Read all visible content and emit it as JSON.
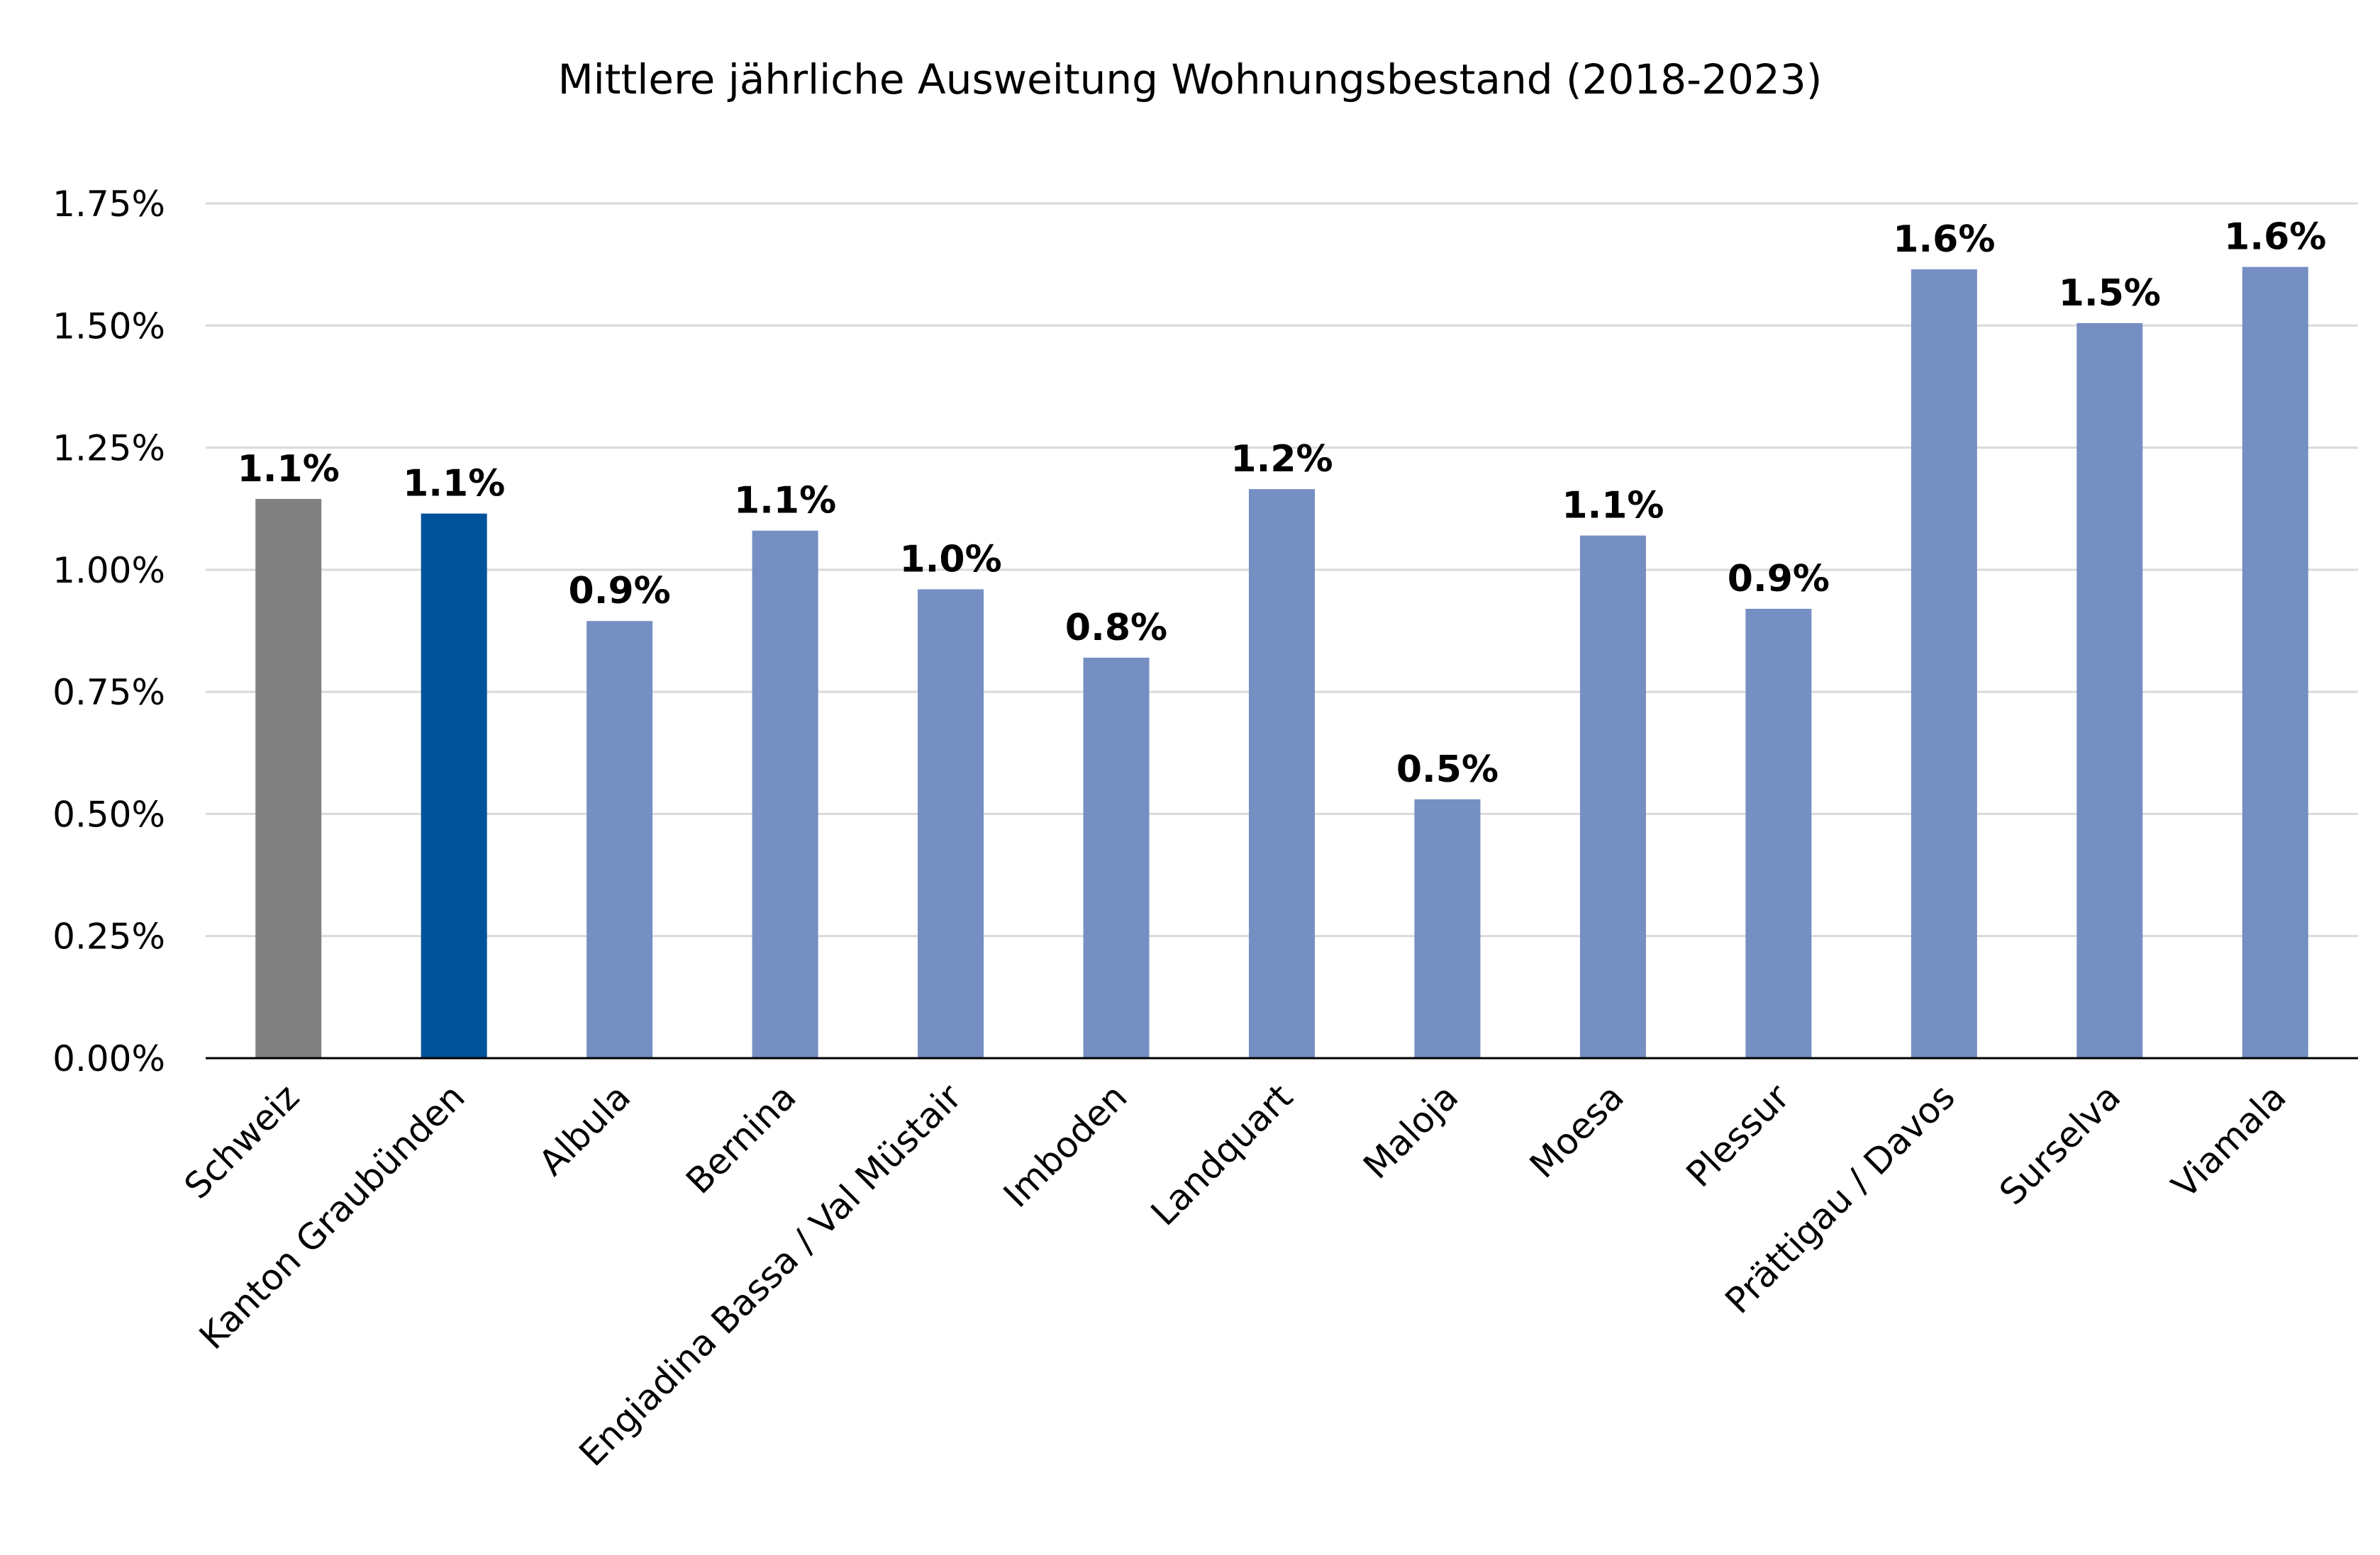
{
  "chart_data": {
    "type": "bar",
    "title": "Mittlere jährliche Ausweitung Wohnungsbestand (2018-2023)",
    "xlabel": "",
    "ylabel": "",
    "ylim": [
      0,
      1.75
    ],
    "yticks": [
      0,
      0.25,
      0.5,
      0.75,
      1.0,
      1.25,
      1.5,
      1.75
    ],
    "ytick_labels": [
      "0.00%",
      "0.25%",
      "0.50%",
      "0.75%",
      "1.00%",
      "1.25%",
      "1.50%",
      "1.75%"
    ],
    "grid": true,
    "legend": false,
    "categories": [
      "Schweiz",
      "Kanton Graubünden",
      "Albula",
      "Bernina",
      "Engiadina Bassa / Val Müstair",
      "Imboden",
      "Landquart",
      "Maloja",
      "Moesa",
      "Plessur",
      "Prättigau / Davos",
      "Surselva",
      "Viamala"
    ],
    "values": [
      1.145,
      1.115,
      0.895,
      1.08,
      0.96,
      0.82,
      1.165,
      0.53,
      1.07,
      0.92,
      1.615,
      1.505,
      1.62
    ],
    "data_labels": [
      "1.1%",
      "1.1%",
      "0.9%",
      "1.1%",
      "1.0%",
      "0.8%",
      "1.2%",
      "0.5%",
      "1.1%",
      "0.9%",
      "1.6%",
      "1.5%",
      "1.6%"
    ],
    "bar_colors": [
      "#808080",
      "#00529b",
      "#758fc3",
      "#758fc3",
      "#758fc3",
      "#758fc3",
      "#758fc3",
      "#758fc3",
      "#758fc3",
      "#758fc3",
      "#758fc3",
      "#758fc3",
      "#758fc3"
    ]
  }
}
